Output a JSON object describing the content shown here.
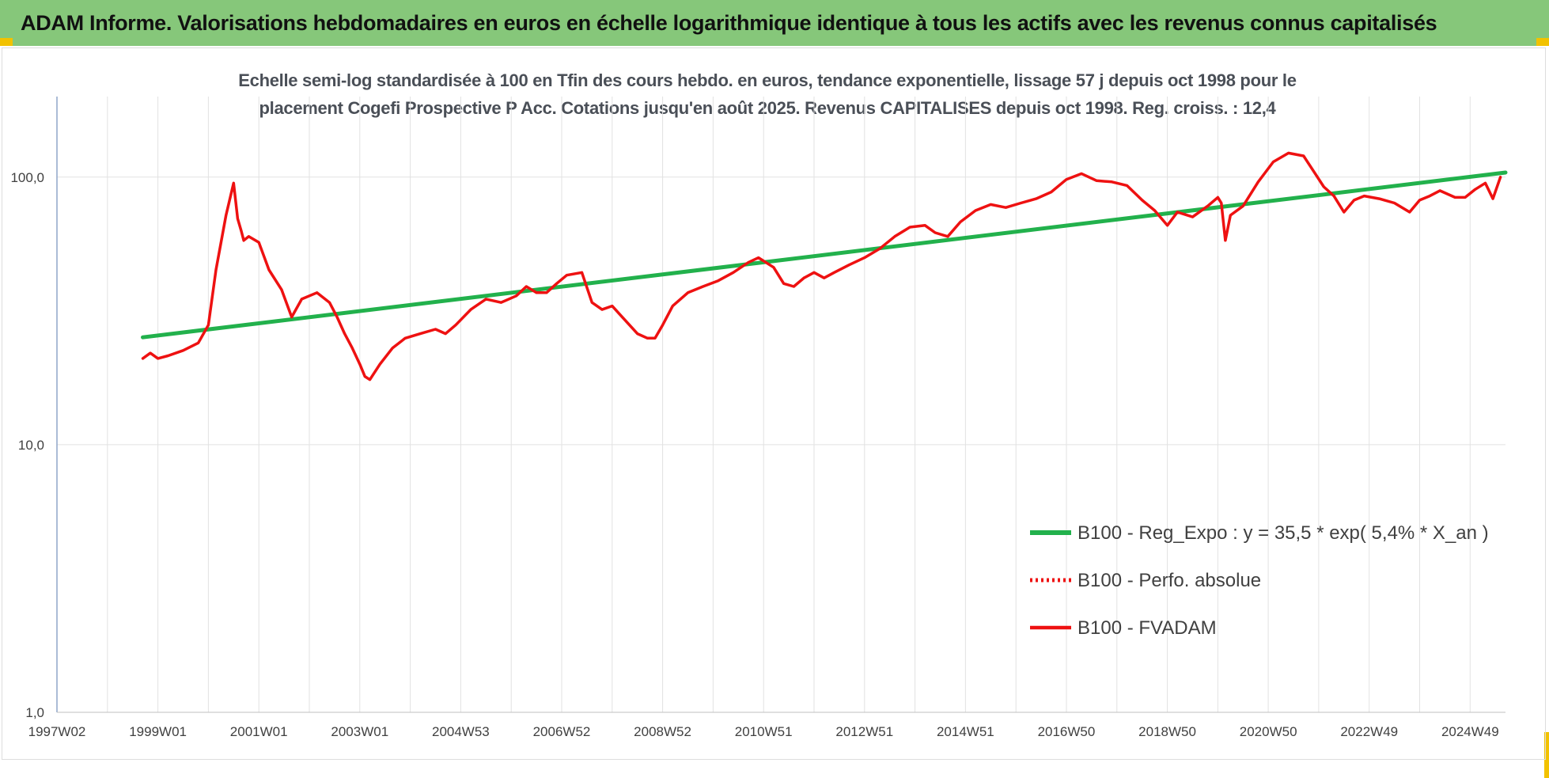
{
  "header": {
    "title": "ADAM Informe. Valorisations hebdomadaires en euros en échelle logarithmique identique à tous les actifs avec les revenus connus capitalisés"
  },
  "colors": {
    "banner": "#86c77a",
    "trend": "#22b14c",
    "series": "#ee1111"
  },
  "chart_data": {
    "type": "line",
    "title_lines": [
      "Echelle semi-log standardisée à 100 en Tfin des cours hebdo. en euros, tendance exponentielle, lissage 57 j depuis oct 1998 pour le",
      "placement Cogefi Prospective P Acc. Cotations jusqu'en août 2025. Revenus CAPITALISES depuis oct 1998. Reg. croiss. : 12,4"
    ],
    "y_scale": "log",
    "ylim": [
      1,
      200
    ],
    "y_ticks": [
      {
        "value": 1,
        "label": "1,0"
      },
      {
        "value": 10,
        "label": "10,0"
      },
      {
        "value": 100,
        "label": "100,0"
      }
    ],
    "xlim": [
      1997.1,
      2025.8
    ],
    "x_ticks": [
      {
        "value": 1997.1,
        "label": "1997W02"
      },
      {
        "value": 1999.1,
        "label": "1999W01"
      },
      {
        "value": 2001.1,
        "label": "2001W01"
      },
      {
        "value": 2003.1,
        "label": "2003W01"
      },
      {
        "value": 2005.1,
        "label": "2004W53"
      },
      {
        "value": 2007.1,
        "label": "2006W52"
      },
      {
        "value": 2009.1,
        "label": "2008W52"
      },
      {
        "value": 2011.1,
        "label": "2010W51"
      },
      {
        "value": 2013.1,
        "label": "2012W51"
      },
      {
        "value": 2015.1,
        "label": "2014W51"
      },
      {
        "value": 2017.1,
        "label": "2016W50"
      },
      {
        "value": 2019.1,
        "label": "2018W50"
      },
      {
        "value": 2021.1,
        "label": "2020W50"
      },
      {
        "value": 2023.1,
        "label": "2022W49"
      },
      {
        "value": 2025.1,
        "label": "2024W49"
      }
    ],
    "legend_position": "right",
    "series": [
      {
        "name": "B100 - Reg_Expo : y = 35,5 * exp( 5,4% *  X_an )",
        "style": "solid-green",
        "x": [
          1998.8,
          2025.8
        ],
        "y": [
          25.2,
          104
        ]
      },
      {
        "name": "B100 - Perfo. absolue",
        "style": "dotted-red",
        "x": [],
        "y": []
      },
      {
        "name": "B100 - FVADAM",
        "style": "solid-red",
        "x": [
          1998.8,
          1998.95,
          1999.1,
          1999.3,
          1999.6,
          1999.9,
          2000.1,
          2000.25,
          2000.45,
          2000.6,
          2000.68,
          2000.75,
          2000.8,
          2000.9,
          2001.1,
          2001.3,
          2001.55,
          2001.75,
          2001.95,
          2002.25,
          2002.5,
          2002.65,
          2002.8,
          2002.95,
          2003.1,
          2003.2,
          2003.3,
          2003.5,
          2003.75,
          2004.0,
          2004.3,
          2004.6,
          2004.8,
          2005.0,
          2005.3,
          2005.6,
          2005.9,
          2006.2,
          2006.4,
          2006.6,
          2006.8,
          2007.0,
          2007.2,
          2007.5,
          2007.7,
          2007.9,
          2008.1,
          2008.3,
          2008.6,
          2008.8,
          2008.95,
          2009.1,
          2009.3,
          2009.6,
          2009.9,
          2010.2,
          2010.5,
          2010.8,
          2011.0,
          2011.3,
          2011.5,
          2011.7,
          2011.9,
          2012.1,
          2012.3,
          2012.5,
          2012.8,
          2013.1,
          2013.4,
          2013.7,
          2014.0,
          2014.3,
          2014.5,
          2014.75,
          2015.0,
          2015.3,
          2015.6,
          2015.9,
          2016.2,
          2016.5,
          2016.8,
          2017.1,
          2017.4,
          2017.7,
          2018.0,
          2018.3,
          2018.6,
          2018.85,
          2019.1,
          2019.3,
          2019.6,
          2019.9,
          2020.1,
          2020.17,
          2020.25,
          2020.35,
          2020.6,
          2020.9,
          2021.2,
          2021.5,
          2021.8,
          2022.0,
          2022.2,
          2022.4,
          2022.6,
          2022.8,
          2023.0,
          2023.3,
          2023.6,
          2023.9,
          2024.1,
          2024.3,
          2024.5,
          2024.8,
          2025.0,
          2025.2,
          2025.4,
          2025.55,
          2025.7
        ],
        "y": [
          21,
          22,
          21,
          21.5,
          22.5,
          24,
          28,
          45,
          72,
          95,
          70,
          63,
          58,
          60,
          57,
          45,
          38,
          30,
          35,
          37,
          34,
          30,
          26,
          23,
          20,
          18,
          17.5,
          20,
          23,
          25,
          26,
          27,
          26,
          28,
          32,
          35,
          34,
          36,
          39,
          37,
          37,
          40,
          43,
          44,
          34,
          32,
          33,
          30,
          26,
          25,
          25,
          28,
          33,
          37,
          39,
          41,
          44,
          48,
          50,
          46,
          40,
          39,
          42,
          44,
          42,
          44,
          47,
          50,
          54,
          60,
          65,
          66,
          62,
          60,
          68,
          75,
          79,
          77,
          80,
          83,
          88,
          98,
          103,
          97,
          96,
          93,
          82,
          75,
          66,
          74,
          71,
          78,
          84,
          80,
          58,
          72,
          78,
          96,
          114,
          123,
          120,
          105,
          92,
          85,
          74,
          82,
          85,
          83,
          80,
          74,
          82,
          85,
          89,
          84,
          84,
          90,
          95,
          83,
          100
        ]
      }
    ]
  }
}
